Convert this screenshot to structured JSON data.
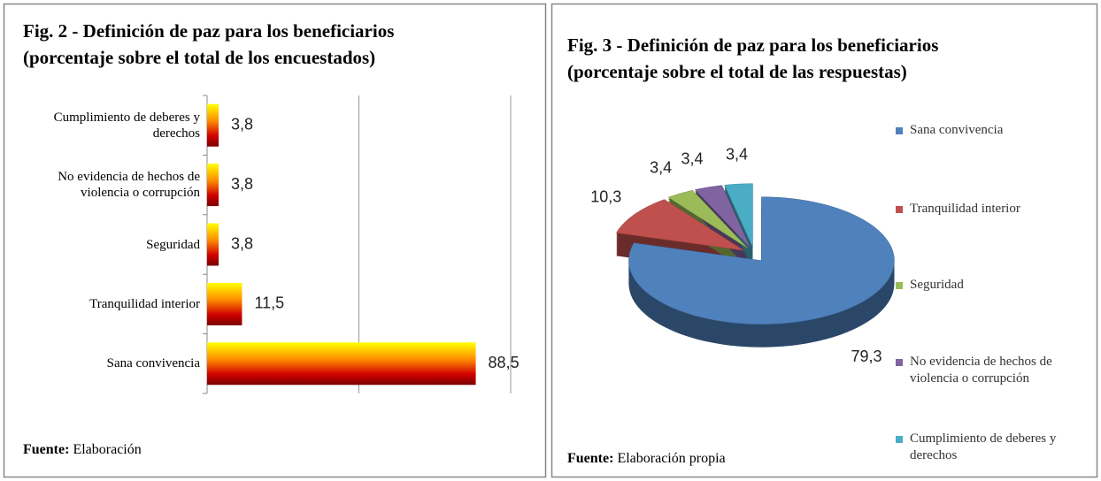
{
  "chart_data": [
    {
      "type": "hbar",
      "title": [
        "Fig. 2 - Definición de paz para los beneficiarios",
        "(porcentaje sobre el total de los encuestados)"
      ],
      "categories": [
        "Cumplimiento de deberes y derechos",
        "No evidencia de hechos de violencia o corrupción",
        "Seguridad",
        "Tranquilidad interior",
        "Sana convivencia"
      ],
      "values": [
        3.8,
        3.8,
        3.8,
        11.5,
        88.5
      ],
      "value_labels": [
        "3,8",
        "3,8",
        "3,8",
        "11,5",
        "88,5"
      ],
      "xlim": [
        0,
        100
      ],
      "xticks": [
        0,
        50,
        100
      ],
      "tick_labels": false,
      "grid": true,
      "source": {
        "label": "Fuente:",
        "text": "Elaboración"
      }
    },
    {
      "type": "pie3d",
      "title": [
        "Fig. 3 - Definición de paz para los beneficiarios",
        "(porcentaje sobre el total de las respuestas)"
      ],
      "categories": [
        "Sana convivencia",
        "Tranquilidad interior",
        "Seguridad",
        "No evidencia de hechos de violencia o corrupción",
        "Cumplimiento de deberes y derechos"
      ],
      "values": [
        79.3,
        10.3,
        3.4,
        3.4,
        3.4
      ],
      "value_labels": [
        "79,3",
        "10,3",
        "3,4",
        "3,4",
        "3,4"
      ],
      "colors": [
        "#4f81bd",
        "#c0504d",
        "#9bbb59",
        "#8064a2",
        "#4bacc6"
      ],
      "legend": "right",
      "source": {
        "label": "Fuente:",
        "text": "Elaboración propia"
      }
    }
  ]
}
